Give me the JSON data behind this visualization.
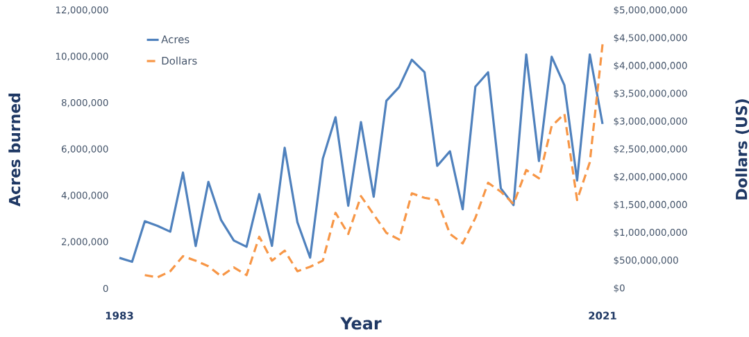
{
  "chart_data": {
    "type": "line",
    "xlabel": "Year",
    "ylabel": "Acres burned",
    "y2label": "Dollars (US)",
    "x": [
      1983,
      1984,
      1985,
      1986,
      1987,
      1988,
      1989,
      1990,
      1991,
      1992,
      1993,
      1994,
      1995,
      1996,
      1997,
      1998,
      1999,
      2000,
      2001,
      2002,
      2003,
      2004,
      2005,
      2006,
      2007,
      2008,
      2009,
      2010,
      2011,
      2012,
      2013,
      2014,
      2015,
      2016,
      2017,
      2018,
      2019,
      2020,
      2021
    ],
    "xlim": [
      1983,
      2021
    ],
    "xticks": [
      1983,
      2021
    ],
    "ylim": [
      0,
      12000000
    ],
    "yticks": [
      0,
      {
        "value": 2000000,
        "label": "2,000,000"
      },
      {
        "value": 4000000,
        "label": "4,000,000"
      },
      {
        "value": 6000000,
        "label": "6,000,000"
      },
      {
        "value": 8000000,
        "label": "8,000,000"
      },
      {
        "value": 10000000,
        "label": "10,000,000"
      },
      {
        "value": 12000000,
        "label": "12,000,000"
      }
    ],
    "y2lim": [
      0,
      5000000000
    ],
    "y2ticks": [
      {
        "value": 0,
        "label": "$0"
      },
      {
        "value": 500000000,
        "label": "$500,000,000"
      },
      {
        "value": 1000000000,
        "label": "$1,000,000,000"
      },
      {
        "value": 1500000000,
        "label": "$1,500,000,000"
      },
      {
        "value": 2000000000,
        "label": "$2,000,000,000"
      },
      {
        "value": 2500000000,
        "label": "$2,500,000,000"
      },
      {
        "value": 3000000000,
        "label": "$3,000,000,000"
      },
      {
        "value": 3500000000,
        "label": "$3,500,000,000"
      },
      {
        "value": 4000000000,
        "label": "$4,000,000,000"
      },
      {
        "value": 4500000000,
        "label": "$4,500,000,000"
      },
      {
        "value": 5000000000,
        "label": "$5,000,000,000"
      }
    ],
    "legend": "top left",
    "series": [
      {
        "name": "Acres",
        "color": "#4f81bd",
        "line_style": "solid",
        "values": [
          1320000,
          1150000,
          2900000,
          2700000,
          2450000,
          5000000,
          1830000,
          4600000,
          2950000,
          2070000,
          1800000,
          4070000,
          1840000,
          6070000,
          2860000,
          1330000,
          5600000,
          7390000,
          3570000,
          7180000,
          3960000,
          8100000,
          8690000,
          9870000,
          9330000,
          5290000,
          5920000,
          3420000,
          8710000,
          9330000,
          4320000,
          3600000,
          10100000,
          5500000,
          10000000,
          8770000,
          4660000,
          10100000,
          7100000
        ]
      },
      {
        "name": "Dollars",
        "color": "#f79646",
        "line_style": "dashed",
        "axis": "y2",
        "x": [
          1985,
          1986,
          1987,
          1988,
          1989,
          1990,
          1991,
          1992,
          1993,
          1994,
          1995,
          1996,
          1997,
          1998,
          1999,
          2000,
          2001,
          2002,
          2003,
          2004,
          2005,
          2006,
          2007,
          2008,
          2009,
          2010,
          2011,
          2012,
          2013,
          2014,
          2015,
          2016,
          2017,
          2018,
          2019,
          2020,
          2021
        ],
        "values": [
          240000000,
          200000000,
          310000000,
          580000000,
          500000000,
          400000000,
          220000000,
          380000000,
          240000000,
          930000000,
          500000000,
          680000000,
          310000000,
          390000000,
          500000000,
          1360000000,
          980000000,
          1660000000,
          1330000000,
          1000000000,
          880000000,
          1710000000,
          1630000000,
          1590000000,
          980000000,
          810000000,
          1270000000,
          1900000000,
          1740000000,
          1520000000,
          2130000000,
          1980000000,
          2920000000,
          3140000000,
          1590000000,
          2270000000,
          4390000000
        ]
      }
    ]
  }
}
